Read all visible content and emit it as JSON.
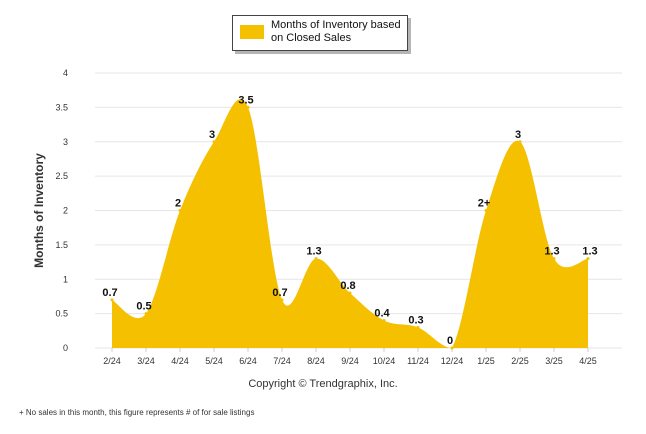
{
  "chart_data": {
    "type": "area",
    "categories": [
      "2/24",
      "3/24",
      "4/24",
      "5/24",
      "6/24",
      "7/24",
      "8/24",
      "9/24",
      "10/24",
      "11/24",
      "12/24",
      "1/25",
      "2/25",
      "3/25",
      "4/25"
    ],
    "series": [
      {
        "name": "Months of Inventory based on Closed Sales",
        "values": [
          0.7,
          0.5,
          2,
          3,
          3.5,
          0.7,
          1.3,
          0.8,
          0.4,
          0.3,
          0,
          2,
          3,
          1.3,
          1.3
        ],
        "labels": [
          "0.7",
          "0.5",
          "2",
          "3",
          "3.5",
          "0.7",
          "1.3",
          "0.8",
          "0.4",
          "0.3",
          "0",
          "2+",
          "3",
          "1.3",
          "1.3"
        ],
        "color": "#f5c000"
      }
    ],
    "ylabel": "Months of Inventory",
    "ylim": [
      0,
      4
    ],
    "yticks": [
      "0",
      "0.5",
      "1",
      "1.5",
      "2",
      "2.5",
      "3",
      "3.5",
      "4"
    ],
    "grid": true,
    "legend_position": "top-center"
  },
  "legend": {
    "label": "Months of Inventory based on Closed Sales",
    "color": "#f5c000"
  },
  "copyright": "Copyright © Trendgraphix, Inc.",
  "footnote": "+  No sales in this month, this figure represents # of for sale listings"
}
